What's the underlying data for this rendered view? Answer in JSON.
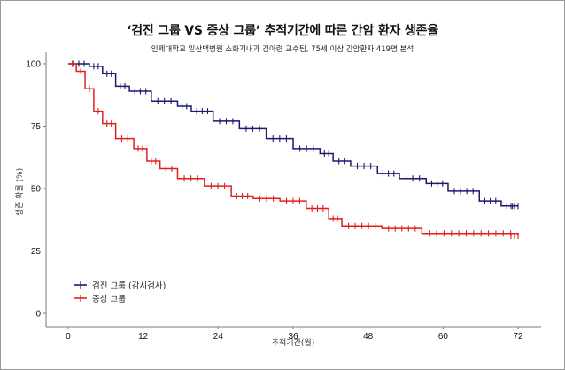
{
  "header": {
    "title": "‘검진 그룹  VS 증상 그룹’ 추적기간에 따른 간암 환자 생존율",
    "subtitle": "인제대학교 일산백병원 소화기내과 김아령 교수팀, 75세 이상 간암환자 419명 분석"
  },
  "colors": {
    "screening": "#1a1a6e",
    "symptom": "#e0201e",
    "axis": "#7a7a7a",
    "frame": "#9a9a9a"
  },
  "chart_data": {
    "type": "line",
    "subtype": "kaplan-meier step",
    "title": "‘검진 그룹  VS 증상 그룹’ 추적기간에 따른 간암 환자 생존율",
    "subtitle": "인제대학교 일산백병원 소화기내과 김아령 교수팀, 75세 이상 간암환자 419명 분석",
    "xlabel": "추적기간(월)",
    "ylabel": "생존 확률 (%)",
    "xlim": [
      0,
      72
    ],
    "ylim": [
      0,
      100
    ],
    "xticks": [
      0,
      12,
      24,
      36,
      48,
      60,
      72
    ],
    "yticks": [
      0,
      25,
      50,
      75,
      100
    ],
    "grid": false,
    "legend_position": "bottom-left inside",
    "series": [
      {
        "name": "검진 그룹 (감시검사)",
        "color": "#1a1a6e",
        "x": [
          0,
          3.4,
          5.5,
          7.6,
          9.8,
          13.3,
          17.5,
          19.7,
          23.2,
          27.4,
          31.7,
          36,
          40.3,
          42.4,
          45.2,
          49.5,
          53,
          57.3,
          60.8,
          65.8,
          69.3,
          72
        ],
        "values": [
          100,
          99,
          96,
          91,
          89,
          85,
          83,
          81,
          77,
          74,
          70,
          66,
          64,
          61,
          59,
          56,
          54,
          52,
          49,
          45,
          43,
          43
        ]
      },
      {
        "name": "증상 그룹",
        "color": "#e0201e",
        "x": [
          0,
          1.3,
          2.7,
          4.1,
          5.5,
          7.6,
          10.5,
          12.6,
          14.7,
          17.5,
          21.8,
          26.1,
          29.6,
          33.9,
          38.1,
          41.7,
          43.8,
          50.2,
          56.6,
          72
        ],
        "values": [
          100,
          97,
          90,
          81,
          76,
          70,
          66,
          61,
          58,
          54,
          51,
          47,
          46,
          45,
          42,
          38,
          35,
          34,
          32,
          31
        ]
      }
    ]
  },
  "axes": {
    "x_ticks": [
      "0",
      "12",
      "24",
      "36",
      "48",
      "60",
      "72"
    ],
    "y_ticks": [
      "0",
      "25",
      "50",
      "75",
      "100"
    ],
    "xlabel": "추적기간(월)",
    "ylabel": "생존 확률 (%)"
  },
  "legend": {
    "items": [
      {
        "label": "검진 그룹 (감시검사)",
        "color": "#1a1a6e"
      },
      {
        "label": "증상 그룹",
        "color": "#e0201e"
      }
    ]
  }
}
